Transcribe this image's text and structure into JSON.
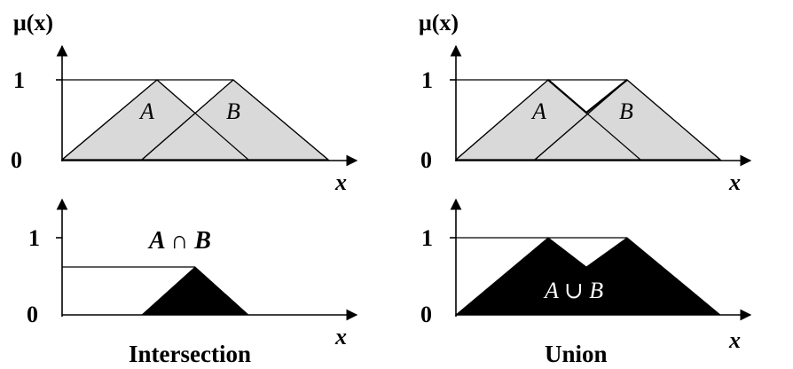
{
  "figure": {
    "colors": {
      "fill_light": "#d9d9d9",
      "fill_dark": "#000000",
      "line": "#000000",
      "result_text_on_dark": "#ffffff"
    },
    "panels": {
      "top_left": {
        "y_axis_label": "μ(x)",
        "tick_one": "1",
        "tick_zero": "0",
        "x_axis_label": "x",
        "set_a_label": "A",
        "set_b_label": "B"
      },
      "top_right": {
        "y_axis_label": "μ(x)",
        "tick_one": "1",
        "tick_zero": "0",
        "x_axis_label": "x",
        "set_a_label": "A",
        "set_b_label": "B"
      },
      "bottom_left": {
        "tick_one": "1",
        "tick_zero": "0",
        "x_axis_label": "x",
        "result_label": "A ∩ B",
        "caption": "Intersection"
      },
      "bottom_right": {
        "tick_one": "1",
        "tick_zero": "0",
        "x_axis_label": "x",
        "result_label": "A ∪ B",
        "caption": "Union"
      }
    }
  }
}
